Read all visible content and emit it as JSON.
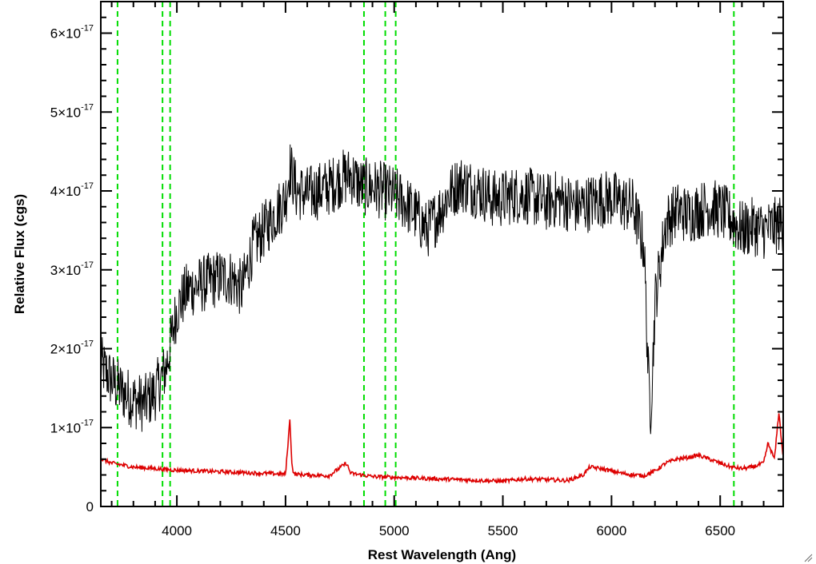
{
  "chart_data": {
    "type": "line",
    "xlabel": "Rest Wavelength (Ang)",
    "ylabel": "Relative Flux (cgs)",
    "xlim": [
      3650,
      6790
    ],
    "ylim": [
      0,
      6.4e-17
    ],
    "x_ticks": [
      4000,
      4500,
      5000,
      5500,
      6000,
      6500
    ],
    "x_tick_labels": [
      "4000",
      "4500",
      "5000",
      "5500",
      "6000",
      "6500"
    ],
    "y_ticks": [
      0,
      1e-17,
      2e-17,
      3e-17,
      4e-17,
      5e-17,
      6e-17
    ],
    "y_tick_labels": [
      {
        "mantissa": "0",
        "exponent": ""
      },
      {
        "mantissa": "1×10",
        "exponent": "-17"
      },
      {
        "mantissa": "2×10",
        "exponent": "-17"
      },
      {
        "mantissa": "3×10",
        "exponent": "-17"
      },
      {
        "mantissa": "4×10",
        "exponent": "-17"
      },
      {
        "mantissa": "5×10",
        "exponent": "-17"
      },
      {
        "mantissa": "6×10",
        "exponent": "-17"
      }
    ],
    "grid": false,
    "reference_lines": {
      "color": "#00dd00",
      "style": "dashed",
      "x": [
        3727,
        3934,
        3969,
        4861,
        4959,
        5007,
        6563
      ]
    },
    "series": [
      {
        "color": "#000000",
        "x": [
          3650,
          3700,
          3750,
          3800,
          3850,
          3900,
          3950,
          4000,
          4050,
          4100,
          4150,
          4200,
          4250,
          4300,
          4350,
          4400,
          4450,
          4500,
          4520,
          4550,
          4600,
          4650,
          4700,
          4750,
          4800,
          4850,
          4900,
          4950,
          5000,
          5050,
          5100,
          5150,
          5200,
          5250,
          5300,
          5350,
          5400,
          5450,
          5500,
          5550,
          5600,
          5650,
          5700,
          5750,
          5800,
          5850,
          5900,
          5950,
          6000,
          6050,
          6100,
          6150,
          6170,
          6180,
          6190,
          6200,
          6250,
          6300,
          6350,
          6400,
          6450,
          6500,
          6550,
          6600,
          6650,
          6700,
          6750,
          6790
        ],
        "y": [
          1.8e-17,
          1.6e-17,
          1.45e-17,
          1.35e-17,
          1.3e-17,
          1.45e-17,
          1.75e-17,
          2.5e-17,
          2.75e-17,
          2.8e-17,
          2.85e-17,
          2.9e-17,
          2.9e-17,
          2.75e-17,
          3.3e-17,
          3.5e-17,
          3.7e-17,
          3.9e-17,
          4.3e-17,
          4e-17,
          3.95e-17,
          4e-17,
          4.05e-17,
          4.15e-17,
          4.2e-17,
          4.05e-17,
          4.05e-17,
          4e-17,
          3.95e-17,
          3.85e-17,
          3.7e-17,
          3.5e-17,
          3.7e-17,
          3.95e-17,
          4.1e-17,
          4.05e-17,
          4e-17,
          3.9e-17,
          3.9e-17,
          3.95e-17,
          3.95e-17,
          3.9e-17,
          3.85e-17,
          3.9e-17,
          3.85e-17,
          3.8e-17,
          3.85e-17,
          3.9e-17,
          3.9e-17,
          3.85e-17,
          3.8e-17,
          3.3e-17,
          1.6e-17,
          1.25e-17,
          1.8e-17,
          2.6e-17,
          3.6e-17,
          3.75e-17,
          3.7e-17,
          3.75e-17,
          3.8e-17,
          3.75e-17,
          3.65e-17,
          3.5e-17,
          3.55e-17,
          3.5e-17,
          3.55e-17,
          3.6e-17
        ]
      },
      {
        "color": "#dd0000",
        "x": [
          3650,
          3700,
          3800,
          3900,
          4000,
          4100,
          4200,
          4300,
          4400,
          4500,
          4520,
          4530,
          4540,
          4600,
          4700,
          4780,
          4800,
          4900,
          5000,
          5100,
          5200,
          5300,
          5400,
          5500,
          5600,
          5700,
          5800,
          5870,
          5900,
          5950,
          6000,
          6050,
          6100,
          6150,
          6200,
          6250,
          6300,
          6350,
          6400,
          6450,
          6500,
          6550,
          6600,
          6650,
          6700,
          6720,
          6750,
          6770,
          6790
        ],
        "y": [
          6e-18,
          5.5e-18,
          5e-18,
          4.8e-18,
          4.6e-18,
          4.5e-18,
          4.4e-18,
          4.3e-18,
          4.2e-18,
          4.1e-18,
          1.1e-17,
          5e-18,
          4.1e-18,
          4e-18,
          3.9e-18,
          5.5e-18,
          4.2e-18,
          3.8e-18,
          3.7e-18,
          3.6e-18,
          3.5e-18,
          3.4e-18,
          3.3e-18,
          3.2e-18,
          3.5e-18,
          3.4e-18,
          3.3e-18,
          4e-18,
          5e-18,
          4.8e-18,
          4.5e-18,
          4.2e-18,
          4e-18,
          3.9e-18,
          4.5e-18,
          5.5e-18,
          6e-18,
          6.2e-18,
          6.5e-18,
          6e-18,
          5.5e-18,
          5e-18,
          4.8e-18,
          5e-18,
          5.5e-18,
          8e-18,
          6e-18,
          1.2e-17,
          6e-18
        ]
      }
    ]
  }
}
